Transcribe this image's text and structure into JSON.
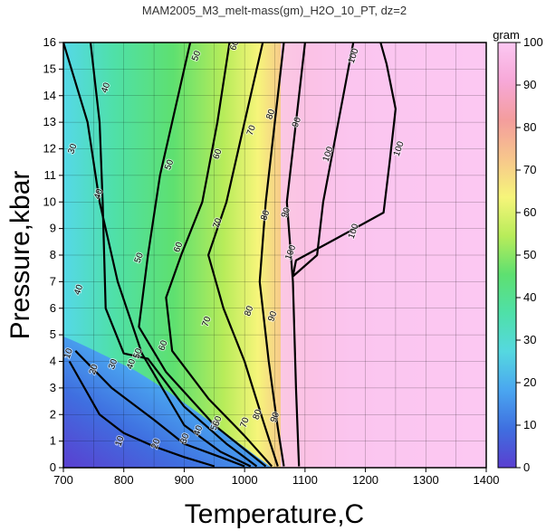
{
  "chart_data": {
    "type": "heatmap",
    "title": "MAM2005_M3_melt-mass(gm)_H2O_10_PT, dz=2",
    "xlabel": "Temperature,C",
    "ylabel": "Pressure,kbar",
    "xlim": [
      700,
      1400
    ],
    "ylim": [
      0,
      16
    ],
    "x_ticks": [
      "700",
      "800",
      "900",
      "1000",
      "1100",
      "1200",
      "1300",
      "1400"
    ],
    "y_ticks": [
      "0",
      "1",
      "2",
      "3",
      "4",
      "5",
      "6",
      "7",
      "8",
      "9",
      "10",
      "11",
      "12",
      "13",
      "14",
      "15",
      "16"
    ],
    "grid": true,
    "colorbar": {
      "label": "gram",
      "range": [
        0,
        100
      ],
      "ticks": [
        "0",
        "10",
        "20",
        "30",
        "40",
        "50",
        "60",
        "70",
        "80",
        "90",
        "100"
      ],
      "colors": [
        "#5a3fd0",
        "#3f6fe0",
        "#4aa6f0",
        "#55d8e0",
        "#4fe0a8",
        "#5ee070",
        "#b8ec5a",
        "#f6f57a",
        "#f7c68c",
        "#f49d9d",
        "#f7a8d8",
        "#fcc8f2"
      ]
    },
    "contours": [
      {
        "level": 10,
        "T": [
          710,
          760,
          800,
          850,
          900,
          950
        ],
        "P": [
          4.0,
          2.0,
          1.3,
          0.8,
          0.4,
          0.05
        ]
      },
      {
        "level": 20,
        "T": [
          720,
          780,
          850,
          900,
          960,
          1000
        ],
        "P": [
          4.4,
          3.0,
          1.8,
          0.9,
          0.4,
          0.05
        ]
      },
      {
        "level": 30,
        "T": [
          700,
          740,
          760,
          790,
          830,
          900,
          960,
          1010
        ],
        "P": [
          16,
          13,
          10,
          7,
          4.3,
          1.6,
          0.6,
          0.05
        ]
      },
      {
        "level": 40,
        "T": [
          745,
          760,
          765,
          770,
          800,
          840,
          900,
          970,
          1020
        ],
        "P": [
          16,
          13,
          10,
          6,
          4.3,
          4.1,
          2.3,
          0.9,
          0.05
        ]
      },
      {
        "level": 50,
        "T": [
          910,
          880,
          860,
          840,
          825,
          870,
          950,
          1035
        ],
        "P": [
          16,
          13,
          11,
          8,
          5.3,
          3.6,
          1.6,
          0.05
        ]
      },
      {
        "level": 60,
        "T": [
          975,
          955,
          930,
          895,
          870,
          880,
          940,
          1000,
          1045
        ],
        "P": [
          16,
          13,
          10,
          8,
          6.4,
          4.4,
          2.6,
          1.2,
          0.05
        ]
      },
      {
        "level": 70,
        "T": [
          1030,
          1000,
          970,
          940,
          965,
          1000,
          1030,
          1055
        ],
        "P": [
          16,
          13,
          10,
          8,
          6,
          4,
          1.8,
          0.05
        ]
      },
      {
        "level": 80,
        "T": [
          1065,
          1050,
          1035,
          1025,
          1040,
          1055,
          1065
        ],
        "P": [
          16,
          13,
          10,
          7,
          4,
          1.5,
          0.05
        ]
      },
      {
        "level": 90,
        "T": [
          1100,
          1085,
          1070,
          1080,
          1085,
          1090
        ],
        "P": [
          16,
          13,
          10,
          7,
          3,
          0.05
        ]
      },
      {
        "level": 100,
        "T": [
          1180,
          1155,
          1130,
          1120,
          1080,
          1085,
          1150,
          1230,
          1240,
          1250,
          1235,
          1225
        ],
        "P": [
          16,
          13,
          10,
          8,
          7.2,
          7.8,
          8.6,
          9.6,
          11.5,
          13.5,
          15.2,
          16
        ]
      }
    ],
    "labels": [
      {
        "text": "30",
        "T": 715,
        "P": 12
      },
      {
        "text": "40",
        "T": 770,
        "P": 14.3
      },
      {
        "text": "40",
        "T": 758,
        "P": 10.3
      },
      {
        "text": "40",
        "T": 725,
        "P": 6.7
      },
      {
        "text": "50",
        "T": 920,
        "P": 15.5
      },
      {
        "text": "50",
        "T": 875,
        "P": 11.4
      },
      {
        "text": "50",
        "T": 825,
        "P": 7.9
      },
      {
        "text": "60",
        "T": 983,
        "P": 15.9
      },
      {
        "text": "60",
        "T": 955,
        "P": 11.8
      },
      {
        "text": "60",
        "T": 890,
        "P": 8.3
      },
      {
        "text": "70",
        "T": 1011,
        "P": 12.7
      },
      {
        "text": "70",
        "T": 955,
        "P": 9.2
      },
      {
        "text": "70",
        "T": 937,
        "P": 5.5
      },
      {
        "text": "80",
        "T": 1043,
        "P": 13.3
      },
      {
        "text": "80",
        "T": 1034,
        "P": 9.5
      },
      {
        "text": "80",
        "T": 1007,
        "P": 5.9
      },
      {
        "text": "90",
        "T": 1086,
        "P": 13.0
      },
      {
        "text": "90",
        "T": 1068,
        "P": 9.6
      },
      {
        "text": "90",
        "T": 1046,
        "P": 5.7
      },
      {
        "text": "100",
        "T": 1180,
        "P": 15.5
      },
      {
        "text": "100",
        "T": 1138,
        "P": 11.8
      },
      {
        "text": "100",
        "T": 1255,
        "P": 12.0
      },
      {
        "text": "100",
        "T": 1180,
        "P": 8.9
      },
      {
        "text": "100",
        "T": 1076,
        "P": 8.1
      },
      {
        "text": "10",
        "T": 708,
        "P": 4.3
      },
      {
        "text": "20",
        "T": 750,
        "P": 3.7
      },
      {
        "text": "30",
        "T": 782,
        "P": 3.9
      },
      {
        "text": "40",
        "T": 812,
        "P": 3.9
      },
      {
        "text": "50",
        "T": 823,
        "P": 4.3
      },
      {
        "text": "60",
        "T": 865,
        "P": 4.6
      },
      {
        "text": "70",
        "T": 1000,
        "P": 1.7
      },
      {
        "text": "80",
        "T": 1021,
        "P": 2.0
      },
      {
        "text": "90",
        "T": 1050,
        "P": 1.9
      },
      {
        "text": "10",
        "T": 793,
        "P": 1.0
      },
      {
        "text": "20",
        "T": 853,
        "P": 0.9
      },
      {
        "text": "30",
        "T": 901,
        "P": 1.1
      },
      {
        "text": "40",
        "T": 923,
        "P": 1.4
      },
      {
        "text": "50",
        "T": 951,
        "P": 1.6
      },
      {
        "text": "60",
        "T": 955,
        "P": 1.75
      }
    ]
  }
}
